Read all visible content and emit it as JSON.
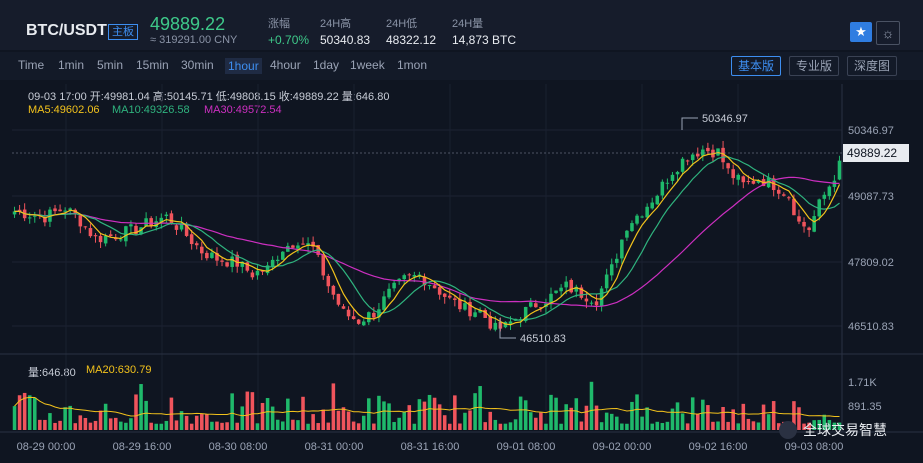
{
  "header": {
    "pair": "BTC/USDT",
    "board_tag": "主板",
    "last_price": "49889.22",
    "cny_price": "≈ 319291.00 CNY",
    "stats": [
      {
        "label": "涨幅",
        "value": "+0.70%",
        "up": true
      },
      {
        "label": "24H高",
        "value": "50340.83"
      },
      {
        "label": "24H低",
        "value": "48322.12"
      },
      {
        "label": "24H量",
        "value": "14,873 BTC"
      }
    ],
    "star_icon": "star-icon",
    "theme_icon": "sun-icon"
  },
  "toolbar": {
    "timeframes": [
      "Time",
      "1min",
      "5min",
      "15min",
      "30min",
      "1hour",
      "4hour",
      "1day",
      "1week",
      "1mon"
    ],
    "active_timeframe": "1hour",
    "views": [
      "基本版",
      "专业版",
      "深度图"
    ],
    "active_view": "基本版"
  },
  "info": {
    "ohlc_line": "09-03 17:00   开:49981.04  高:50145.71  低:49808.15  收:49889.22  量:646.80",
    "ma5": "MA5:49602.06",
    "ma10": "MA10:49326.58",
    "ma30": "MA30:49572.54",
    "vol": "量:646.80",
    "ma20": "MA20:630.79"
  },
  "colors": {
    "up": "#1fb96b",
    "down": "#f0545c",
    "ma5": "#f2c21c",
    "ma10": "#2fb37e",
    "ma30": "#cc2fc0",
    "ma20_vol": "#f2c21c",
    "accent": "#3d8ef0"
  },
  "watermark": "全球交易智慧",
  "chart_data": {
    "type": "candlestick",
    "price_axis_ticks": [
      "50346.97",
      "49087.73",
      "47809.02",
      "46510.83"
    ],
    "volume_axis_ticks": [
      "1.71K",
      "891.35"
    ],
    "x_tick_labels": [
      "08-29 00:00",
      "08-29 16:00",
      "08-30 08:00",
      "08-31 00:00",
      "08-31 16:00",
      "09-01 08:00",
      "09-02 00:00",
      "09-02 16:00",
      "09-03 08:00"
    ],
    "current_price_label": "49889.22",
    "high_marker": "50346.97",
    "low_marker": "46510.83",
    "ylim": [
      46200,
      50800
    ],
    "anchors": [
      [
        0,
        48990
      ],
      [
        6,
        48880
      ],
      [
        10,
        49060
      ],
      [
        13,
        48800
      ],
      [
        16,
        48450
      ],
      [
        20,
        48520
      ],
      [
        24,
        48640
      ],
      [
        27,
        48780
      ],
      [
        30,
        48880
      ],
      [
        33,
        48620
      ],
      [
        37,
        48200
      ],
      [
        40,
        48050
      ],
      [
        44,
        47960
      ],
      [
        47,
        47750
      ],
      [
        50,
        47850
      ],
      [
        53,
        48260
      ],
      [
        56,
        48430
      ],
      [
        59,
        48250
      ],
      [
        62,
        47520
      ],
      [
        65,
        46970
      ],
      [
        68,
        46820
      ],
      [
        71,
        46980
      ],
      [
        74,
        47360
      ],
      [
        77,
        47630
      ],
      [
        80,
        47720
      ],
      [
        83,
        47500
      ],
      [
        86,
        47230
      ],
      [
        89,
        47050
      ],
      [
        92,
        47010
      ],
      [
        95,
        46650
      ],
      [
        97,
        46700
      ],
      [
        100,
        46950
      ],
      [
        103,
        47150
      ],
      [
        106,
        47300
      ],
      [
        109,
        47500
      ],
      [
        112,
        47360
      ],
      [
        115,
        47250
      ],
      [
        118,
        47850
      ],
      [
        121,
        48720
      ],
      [
        124,
        49000
      ],
      [
        127,
        49350
      ],
      [
        130,
        49800
      ],
      [
        133,
        50100
      ],
      [
        136,
        50220
      ],
      [
        139,
        50170
      ],
      [
        141,
        49780
      ],
      [
        144,
        49510
      ],
      [
        147,
        49640
      ],
      [
        150,
        49520
      ],
      [
        153,
        49310
      ],
      [
        155,
        48760
      ],
      [
        157,
        48650
      ],
      [
        159,
        49120
      ],
      [
        161,
        49500
      ],
      [
        163,
        49890
      ]
    ],
    "volume_level": [
      0.12,
      0.36
    ],
    "n_candles": 164
  }
}
